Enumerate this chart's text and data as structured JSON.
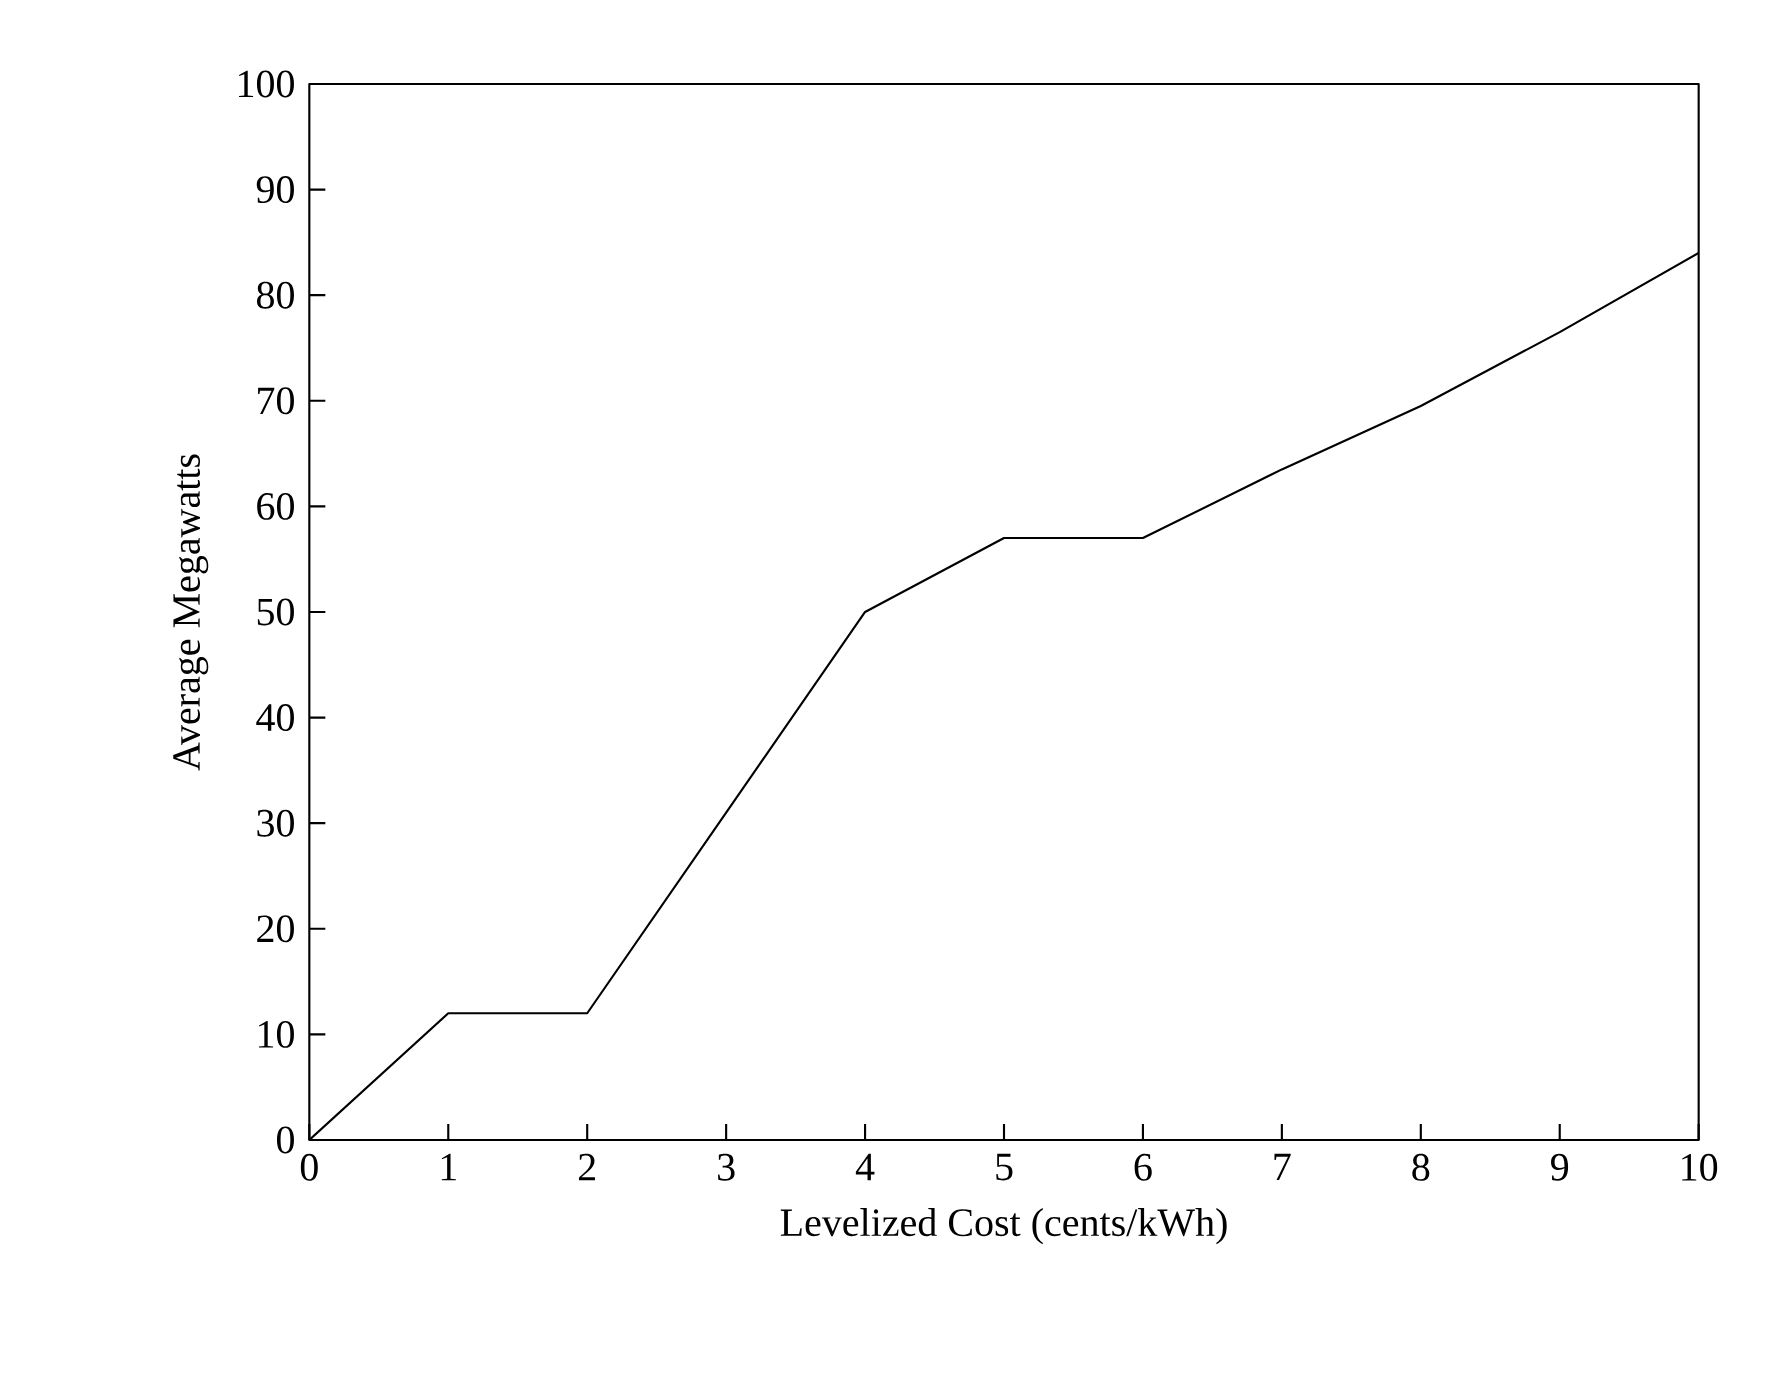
{
  "chart_data": {
    "type": "line",
    "xlabel": "Levelized Cost (cents/kWh)",
    "ylabel": "Average Megawatts",
    "x": [
      0,
      1,
      2,
      3,
      4,
      5,
      6,
      7,
      8,
      9,
      10
    ],
    "series": [
      {
        "color": "#000000",
        "values": [
          0,
          12,
          12,
          31,
          50,
          57,
          57,
          63.5,
          69.5,
          76.5,
          84
        ]
      }
    ],
    "xlim": [
      0,
      10
    ],
    "ylim": [
      0,
      100
    ],
    "xticks": [
      0,
      1,
      2,
      3,
      4,
      5,
      6,
      7,
      8,
      9,
      10
    ],
    "yticks": [
      0,
      10,
      20,
      30,
      40,
      50,
      60,
      70,
      80,
      90,
      100
    ],
    "grid": false,
    "marker": "none",
    "line_style": "solid"
  }
}
